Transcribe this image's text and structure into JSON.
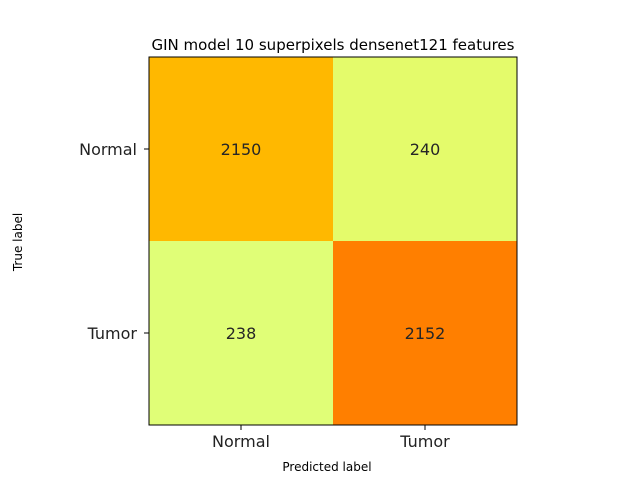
{
  "chart_data": {
    "type": "heatmap",
    "title": "GIN model 10 superpixels densenet121 features",
    "xlabel": "Predicted label",
    "ylabel": "True label",
    "x_categories": [
      "Normal",
      "Tumor"
    ],
    "y_categories": [
      "Normal",
      "Tumor"
    ],
    "values": [
      [
        2150,
        240
      ],
      [
        238,
        2152
      ]
    ],
    "cell_colors": [
      [
        "#ffb800",
        "#e4fb6b"
      ],
      [
        "#e0fe77",
        "#ff7f00"
      ]
    ],
    "colormap": "Wistia",
    "grid": false,
    "legend": "none"
  }
}
